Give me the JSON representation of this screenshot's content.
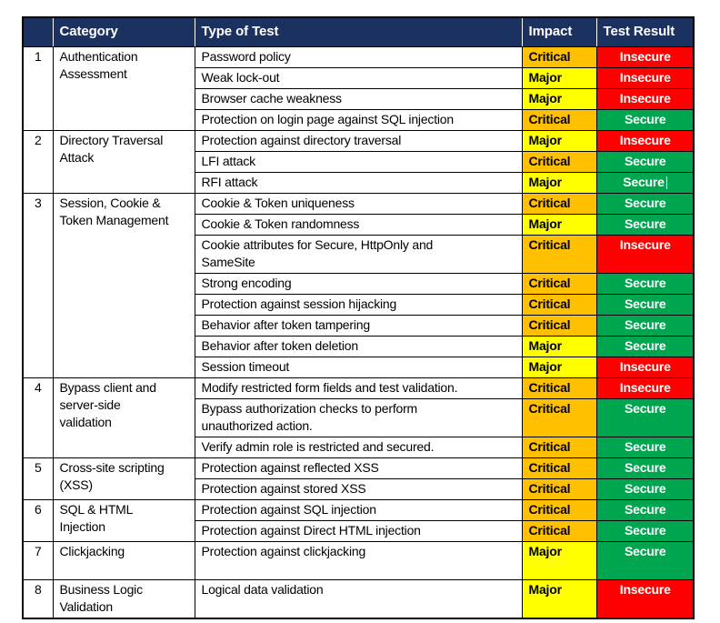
{
  "table": {
    "columns": [
      {
        "key": "num",
        "label": ""
      },
      {
        "key": "category",
        "label": "Category"
      },
      {
        "key": "type",
        "label": "Type of Test"
      },
      {
        "key": "impact",
        "label": "Impact"
      },
      {
        "key": "result",
        "label": "Test Result"
      }
    ],
    "colors": {
      "header_bg": "#1b3160",
      "header_text": "#ffffff",
      "grid_line": "#000000",
      "impact": {
        "Critical": "#ffc000",
        "Major": "#ffff00"
      },
      "impact_text": "#000000",
      "result": {
        "Secure": "#00a64f",
        "Insecure": "#fe0000"
      },
      "result_text": "#ffffff",
      "cursor_color": "#ffffff"
    },
    "sections": [
      {
        "num": "1",
        "category": "Authentication\nAssessment",
        "tests": [
          {
            "type": "Password policy",
            "impact": "Critical",
            "result": "Insecure"
          },
          {
            "type": "Weak lock-out",
            "impact": "Major",
            "result": "Insecure"
          },
          {
            "type": "Browser cache weakness",
            "impact": "Major",
            "result": "Insecure"
          },
          {
            "type": "Protection on login page against SQL injection",
            "impact": "Critical",
            "result": "Secure"
          }
        ]
      },
      {
        "num": "2",
        "category": "Directory Traversal\nAttack",
        "tests": [
          {
            "type": "Protection against directory traversal",
            "impact": "Major",
            "result": "Insecure"
          },
          {
            "type": "LFI attack",
            "impact": "Critical",
            "result": "Secure"
          },
          {
            "type": "RFI attack",
            "impact": "Major",
            "result": "Secure",
            "cursor": true
          }
        ]
      },
      {
        "num": "3",
        "category": "Session, Cookie &\nToken Management",
        "tests": [
          {
            "type": "Cookie & Token uniqueness",
            "impact": "Critical",
            "result": "Secure"
          },
          {
            "type": "Cookie & Token randomness",
            "impact": "Major",
            "result": "Secure"
          },
          {
            "type": "Cookie attributes for Secure, HttpOnly and\nSameSite",
            "impact": "Critical",
            "result": "Insecure"
          },
          {
            "type": "Strong encoding",
            "impact": "Critical",
            "result": "Secure"
          },
          {
            "type": "Protection against session hijacking",
            "impact": "Critical",
            "result": "Secure"
          },
          {
            "type": "Behavior after token tampering",
            "impact": "Critical",
            "result": "Secure"
          },
          {
            "type": "Behavior after token deletion",
            "impact": "Major",
            "result": "Secure"
          },
          {
            "type": "Session timeout",
            "impact": "Major",
            "result": "Insecure"
          }
        ]
      },
      {
        "num": "4",
        "category": "Bypass client and\nserver-side\nvalidation",
        "tests": [
          {
            "type": "Modify restricted form fields and test validation.",
            "impact": "Critical",
            "result": "Insecure"
          },
          {
            "type": "Bypass authorization checks to perform\nunauthorized action.",
            "impact": "Critical",
            "result": "Secure"
          },
          {
            "type": "Verify admin role is restricted and secured.",
            "impact": "Critical",
            "result": "Secure"
          }
        ]
      },
      {
        "num": "5",
        "category": "Cross-site scripting\n(XSS)",
        "tests": [
          {
            "type": "Protection against reflected XSS",
            "impact": "Critical",
            "result": "Secure"
          },
          {
            "type": "Protection against stored XSS",
            "impact": "Critical",
            "result": "Secure"
          }
        ]
      },
      {
        "num": "6",
        "category": "SQL & HTML\nInjection",
        "tests": [
          {
            "type": "Protection against SQL injection",
            "impact": "Critical",
            "result": "Secure"
          },
          {
            "type": "Protection against Direct HTML injection",
            "impact": "Critical",
            "result": "Secure"
          }
        ]
      },
      {
        "num": "7",
        "category": "Clickjacking",
        "tests": [
          {
            "type": "Protection against clickjacking",
            "impact": "Major",
            "result": "Secure",
            "tall": true
          }
        ]
      },
      {
        "num": "8",
        "category": "Business Logic\nValidation",
        "tests": [
          {
            "type": "Logical data validation",
            "impact": "Major",
            "result": "Insecure",
            "tall": true
          }
        ]
      }
    ]
  }
}
